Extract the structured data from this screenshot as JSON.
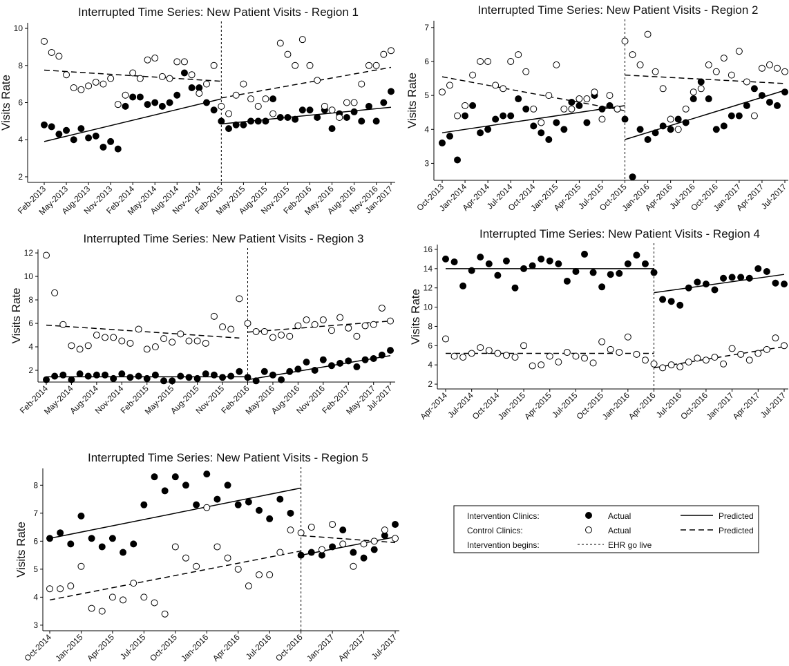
{
  "chart_data": [
    {
      "type": "scatter",
      "title": "Interrupted Time Series: New Patient Visits - Region 1",
      "y_label": "Visits Rate",
      "categories": [
        "Feb-2013",
        null,
        null,
        "May-2013",
        null,
        null,
        "Aug-2013",
        null,
        null,
        "Nov-2013",
        null,
        null,
        "Feb-2014",
        null,
        null,
        "May-2014",
        null,
        null,
        "Aug-2014",
        null,
        null,
        "Nov-2014",
        null,
        null,
        "Feb-2015",
        null,
        null,
        "May-2015",
        null,
        null,
        "Aug-2015",
        null,
        null,
        "Nov-2015",
        null,
        null,
        "Feb-2016",
        null,
        null,
        "May-2016",
        null,
        null,
        "Aug-2016",
        null,
        null,
        "Nov-2016",
        null,
        "Jan-2017"
      ],
      "intervention": "Feb-2015",
      "series": [
        {
          "marker": "filled",
          "color": "#000000",
          "values": [
            4.8,
            4.7,
            4.3,
            4.5,
            4.0,
            4.6,
            4.1,
            4.2,
            3.6,
            3.9,
            3.5,
            5.8,
            6.3,
            6.3,
            5.9,
            6.0,
            5.8,
            6.0,
            6.4,
            7.6,
            6.8,
            6.8,
            6.0,
            5.6,
            5.0,
            4.6,
            4.8,
            4.8,
            5.0,
            5.0,
            5.0,
            6.2,
            5.2,
            5.2,
            5.1,
            5.6,
            5.6,
            5.2,
            5.6,
            4.6,
            5.4,
            5.2,
            5.5,
            5.0,
            5.8,
            5.0,
            6.0,
            6.6
          ]
        },
        {
          "marker": "open",
          "color": "#000000",
          "values": [
            9.3,
            8.7,
            8.5,
            7.5,
            6.8,
            6.7,
            6.9,
            7.1,
            7.0,
            7.3,
            5.9,
            6.4,
            7.6,
            7.3,
            8.3,
            8.4,
            7.4,
            7.3,
            8.2,
            8.2,
            7.5,
            6.5,
            7.0,
            8.0,
            5.8,
            5.4,
            6.4,
            7.0,
            6.2,
            5.8,
            6.2,
            5.4,
            9.2,
            8.6,
            8.0,
            9.4,
            8.0,
            7.2,
            5.8,
            5.6,
            5.2,
            6.0,
            6.0,
            7.0,
            8.0,
            8.0,
            8.6,
            8.8
          ]
        }
      ],
      "fits": [
        {
          "style": "solid",
          "x": [
            0,
            24
          ],
          "values": [
            3.9,
            6.2
          ]
        },
        {
          "style": "solid",
          "x": [
            24,
            47
          ],
          "values": [
            4.85,
            5.75
          ]
        },
        {
          "style": "dashed",
          "x": [
            0,
            24
          ],
          "values": [
            7.75,
            7.15
          ]
        },
        {
          "style": "dashed",
          "x": [
            24,
            47
          ],
          "values": [
            6.25,
            7.9
          ]
        }
      ],
      "ylim": [
        1.7,
        10.3
      ],
      "yticks": [
        2,
        4,
        6,
        8,
        10
      ]
    },
    {
      "type": "scatter",
      "title": "Interrupted Time Series: New Patient Visits - Region 2",
      "y_label": "Visits Rate",
      "categories": [
        "Oct-2013",
        null,
        null,
        "Jan-2014",
        null,
        null,
        "Apr-2014",
        null,
        null,
        "Jul-2014",
        null,
        null,
        "Oct-2014",
        null,
        null,
        "Jan-2015",
        null,
        null,
        "Apr-2015",
        null,
        null,
        "Jul-2015",
        null,
        null,
        "Oct-2015",
        null,
        null,
        "Jan-2016",
        null,
        null,
        "Apr-2016",
        null,
        null,
        "Jul-2016",
        null,
        null,
        "Oct-2016",
        null,
        null,
        "Jan-2017",
        null,
        null,
        "Apr-2017",
        null,
        null,
        "Jul-2017"
      ],
      "intervention": "Oct-2015",
      "series": [
        {
          "marker": "filled",
          "color": "#000000",
          "values": [
            3.6,
            3.8,
            3.1,
            4.4,
            4.7,
            3.9,
            4.0,
            4.3,
            4.4,
            4.4,
            4.9,
            4.6,
            4.1,
            3.9,
            3.7,
            4.2,
            4.0,
            4.8,
            4.7,
            4.2,
            5.0,
            4.6,
            4.7,
            4.6,
            4.3,
            2.6,
            4.0,
            3.7,
            3.9,
            4.1,
            4.0,
            4.3,
            4.2,
            4.9,
            5.4,
            4.9,
            4.0,
            4.1,
            4.4,
            4.4,
            4.7,
            5.2,
            5.0,
            4.8,
            4.7,
            5.1
          ]
        },
        {
          "marker": "open",
          "color": "#000000",
          "values": [
            5.1,
            5.3,
            4.4,
            4.7,
            5.6,
            6.0,
            6.0,
            5.3,
            5.2,
            6.0,
            6.2,
            5.7,
            4.6,
            4.2,
            5.0,
            5.9,
            4.6,
            4.6,
            4.9,
            4.9,
            5.1,
            4.3,
            5.0,
            4.6,
            6.6,
            6.2,
            5.9,
            6.8,
            5.7,
            5.2,
            4.3,
            4.0,
            4.6,
            5.1,
            5.2,
            5.9,
            5.7,
            6.1,
            5.6,
            6.3,
            5.4,
            4.4,
            5.8,
            5.9,
            5.8,
            5.7
          ]
        }
      ],
      "fits": [
        {
          "style": "solid",
          "x": [
            0,
            24
          ],
          "values": [
            3.9,
            4.7
          ]
        },
        {
          "style": "solid",
          "x": [
            24,
            45
          ],
          "values": [
            3.7,
            5.15
          ]
        },
        {
          "style": "dashed",
          "x": [
            0,
            24
          ],
          "values": [
            5.55,
            4.55
          ]
        },
        {
          "style": "dashed",
          "x": [
            24,
            45
          ],
          "values": [
            5.6,
            5.35
          ]
        }
      ],
      "ylim": [
        2.5,
        7.2
      ],
      "yticks": [
        3,
        4,
        5,
        6,
        7
      ]
    },
    {
      "type": "scatter",
      "title": "Interrupted Time Series: New Patient Visits - Region 3",
      "y_label": "Visits Rate",
      "categories": [
        "Feb-2014",
        null,
        null,
        "May-2014",
        null,
        null,
        "Aug-2014",
        null,
        null,
        "Nov-2014",
        null,
        null,
        "Feb-2015",
        null,
        null,
        "May-2015",
        null,
        null,
        "Aug-2015",
        null,
        null,
        "Nov-2015",
        null,
        null,
        "Feb-2016",
        null,
        null,
        "May-2016",
        null,
        null,
        "Aug-2016",
        null,
        null,
        "Nov-2016",
        null,
        null,
        "Feb-2017",
        null,
        null,
        "May-2017",
        null,
        "Jul-2017"
      ],
      "intervention": "Feb-2016",
      "series": [
        {
          "marker": "filled",
          "color": "#000000",
          "values": [
            1.2,
            1.5,
            1.6,
            1.2,
            1.7,
            1.5,
            1.6,
            1.6,
            1.3,
            1.7,
            1.4,
            1.5,
            1.3,
            1.6,
            1.1,
            1.1,
            1.5,
            1.4,
            1.3,
            1.7,
            1.6,
            1.4,
            1.5,
            1.9,
            1.4,
            1.1,
            1.9,
            1.6,
            1.2,
            1.9,
            2.1,
            2.7,
            2.0,
            2.9,
            2.4,
            2.6,
            2.8,
            2.3,
            2.9,
            3.0,
            3.3,
            3.7
          ]
        },
        {
          "marker": "open",
          "color": "#000000",
          "values": [
            11.8,
            8.6,
            5.9,
            4.1,
            3.8,
            4.1,
            5.0,
            4.8,
            4.8,
            4.5,
            4.3,
            5.5,
            3.8,
            4.0,
            4.7,
            4.4,
            5.1,
            4.5,
            4.5,
            4.3,
            6.6,
            5.7,
            5.5,
            8.1,
            6.0,
            5.3,
            5.3,
            4.8,
            5.0,
            4.9,
            5.8,
            6.3,
            5.9,
            6.3,
            5.4,
            6.5,
            5.6,
            4.9,
            5.8,
            5.9,
            7.3,
            6.2
          ]
        }
      ],
      "fits": [
        {
          "style": "solid",
          "x": [
            0,
            24
          ],
          "values": [
            1.45,
            1.45
          ]
        },
        {
          "style": "solid",
          "x": [
            24,
            41
          ],
          "values": [
            1.2,
            3.25
          ]
        },
        {
          "style": "dashed",
          "x": [
            0,
            23
          ],
          "values": [
            5.85,
            4.75
          ]
        },
        {
          "style": "dashed",
          "x": [
            24,
            41
          ],
          "values": [
            5.25,
            6.2
          ]
        }
      ],
      "ylim": [
        1,
        12.3
      ],
      "yticks": [
        2,
        4,
        6,
        8,
        10,
        12
      ]
    },
    {
      "type": "scatter",
      "title": "Interrupted Time Series: New Patient Visits - Region 4",
      "y_label": "Visits Rate",
      "categories": [
        "Apr-2014",
        null,
        null,
        "Jul-2014",
        null,
        null,
        "Oct-2014",
        null,
        null,
        "Jan-2015",
        null,
        null,
        "Apr-2015",
        null,
        null,
        "Jul-2015",
        null,
        null,
        "Oct-2015",
        null,
        null,
        "Jan-2016",
        null,
        null,
        "Apr-2016",
        null,
        null,
        "Jul-2016",
        null,
        null,
        "Oct-2016",
        null,
        null,
        "Jan-2017",
        null,
        null,
        "Apr-2017",
        null,
        null,
        "Jul-2017"
      ],
      "intervention": "Apr-2016",
      "series": [
        {
          "marker": "filled",
          "color": "#000000",
          "values": [
            15.0,
            14.7,
            12.2,
            13.8,
            15.2,
            14.5,
            13.3,
            14.8,
            12.0,
            14.0,
            14.3,
            15.0,
            14.8,
            14.5,
            12.7,
            13.7,
            15.5,
            13.6,
            12.1,
            13.4,
            13.5,
            14.5,
            15.4,
            14.5,
            13.6,
            10.8,
            10.6,
            10.2,
            12.0,
            12.6,
            12.4,
            11.8,
            13.0,
            13.1,
            13.1,
            13.0,
            14.0,
            13.7,
            12.5,
            12.4
          ]
        },
        {
          "marker": "open",
          "color": "#000000",
          "values": [
            6.7,
            4.9,
            4.8,
            5.2,
            5.8,
            5.5,
            5.2,
            5.0,
            4.8,
            6.0,
            3.9,
            4.0,
            4.9,
            4.3,
            5.3,
            4.9,
            4.7,
            4.2,
            6.4,
            5.6,
            5.3,
            6.9,
            5.1,
            4.5,
            4.1,
            3.7,
            4.0,
            3.8,
            4.3,
            4.7,
            4.5,
            4.8,
            4.1,
            5.7,
            5.1,
            4.5,
            5.2,
            5.6,
            6.8,
            6.0
          ]
        }
      ],
      "fits": [
        {
          "style": "solid",
          "x": [
            0,
            24
          ],
          "values": [
            14.0,
            14.0
          ]
        },
        {
          "style": "solid",
          "x": [
            24,
            39
          ],
          "values": [
            11.5,
            13.4
          ]
        },
        {
          "style": "dashed",
          "x": [
            0,
            24
          ],
          "values": [
            5.2,
            5.2
          ]
        },
        {
          "style": "dashed",
          "x": [
            24,
            39
          ],
          "values": [
            3.7,
            5.9
          ]
        }
      ],
      "ylim": [
        1.5,
        16.5
      ],
      "yticks": [
        2,
        4,
        6,
        8,
        10,
        12,
        14,
        16
      ]
    },
    {
      "type": "scatter",
      "title": "Interrupted Time Series: New Patient Visits - Region 5",
      "y_label": "Visits Rate",
      "categories": [
        "Oct-2014",
        null,
        null,
        "Jan-2015",
        null,
        null,
        "Apr-2015",
        null,
        null,
        "Jul-2015",
        null,
        null,
        "Oct-2015",
        null,
        null,
        "Jan-2016",
        null,
        null,
        "Apr-2016",
        null,
        null,
        "Jul-2016",
        null,
        null,
        "Oct-2016",
        null,
        null,
        "Jan-2017",
        null,
        null,
        "Apr-2017",
        null,
        null,
        "Jul-2017"
      ],
      "intervention": "Oct-2016",
      "series": [
        {
          "marker": "filled",
          "color": "#000000",
          "values": [
            6.1,
            6.3,
            5.9,
            6.9,
            6.1,
            5.8,
            6.1,
            5.6,
            5.9,
            7.3,
            8.3,
            7.8,
            8.3,
            8.0,
            7.3,
            8.4,
            7.5,
            8.0,
            7.3,
            7.4,
            7.1,
            6.8,
            7.5,
            7.0,
            5.5,
            5.6,
            5.5,
            5.8,
            6.4,
            5.6,
            5.4,
            5.7,
            6.2,
            6.6
          ]
        },
        {
          "marker": "open",
          "color": "#000000",
          "values": [
            4.3,
            4.3,
            4.4,
            5.1,
            3.6,
            3.5,
            4.0,
            3.9,
            4.5,
            4.0,
            3.8,
            3.4,
            5.8,
            5.4,
            5.1,
            7.2,
            5.8,
            5.4,
            5.0,
            4.4,
            4.8,
            4.8,
            5.6,
            6.4,
            6.3,
            6.5,
            5.7,
            6.6,
            5.9,
            5.1,
            5.9,
            6.0,
            6.4,
            6.1
          ]
        }
      ],
      "fits": [
        {
          "style": "solid",
          "x": [
            0,
            24
          ],
          "values": [
            6.1,
            7.9
          ]
        },
        {
          "style": "solid",
          "x": [
            24,
            33
          ],
          "values": [
            5.5,
            6.15
          ]
        },
        {
          "style": "dashed",
          "x": [
            0,
            24
          ],
          "values": [
            3.9,
            5.65
          ]
        },
        {
          "style": "dashed",
          "x": [
            24,
            33
          ],
          "values": [
            6.2,
            5.95
          ]
        }
      ],
      "ylim": [
        2.8,
        8.6
      ],
      "yticks": [
        3,
        4,
        5,
        6,
        7,
        8
      ]
    }
  ],
  "legend": {
    "rows": [
      {
        "label": "Intervention Clinics:",
        "actual": "Actual",
        "predicted": "Predicted"
      },
      {
        "label": "Control Clinics:",
        "actual": "Actual",
        "predicted": "Predicted"
      },
      {
        "label": "Intervention begins:",
        "line": "EHR go live"
      }
    ]
  }
}
